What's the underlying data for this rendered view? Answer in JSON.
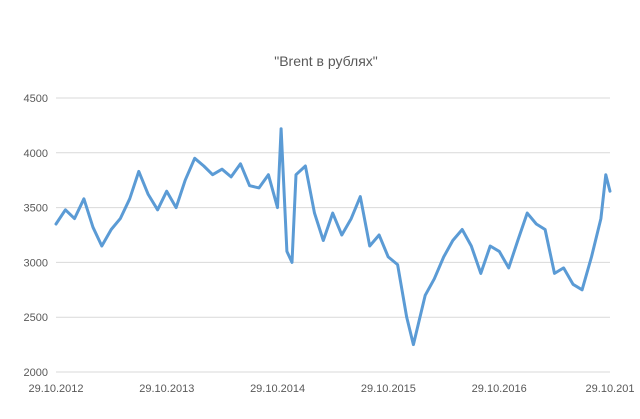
{
  "chart_data": {
    "type": "line",
    "title": "\"Brent в рублях\"",
    "xlabel": "",
    "ylabel": "",
    "x_ticks": [
      "29.10.2012",
      "29.10.2013",
      "29.10.2014",
      "29.10.2015",
      "29.10.2016",
      "29.10.201"
    ],
    "x_range": [
      "2012-10-29",
      "2017-10-29"
    ],
    "ylim": [
      2000,
      4500
    ],
    "y_ticks": [
      2000,
      2500,
      3000,
      3500,
      4000,
      4500
    ],
    "grid": "horizontal",
    "legend": "none",
    "series_color": "#5b9bd5",
    "series": [
      {
        "x": [
          "2012-10-29",
          "2012-11-29",
          "2012-12-29",
          "2013-01-29",
          "2013-02-28",
          "2013-03-29",
          "2013-04-29",
          "2013-05-29",
          "2013-06-29",
          "2013-07-29",
          "2013-08-29",
          "2013-09-29",
          "2013-10-29",
          "2013-11-29",
          "2013-12-29",
          "2014-01-29",
          "2014-02-28",
          "2014-03-29",
          "2014-04-29",
          "2014-05-29",
          "2014-06-29",
          "2014-07-29",
          "2014-08-29",
          "2014-09-29",
          "2014-10-29",
          "2014-11-10",
          "2014-11-29",
          "2014-12-16",
          "2014-12-29",
          "2015-01-29",
          "2015-02-28",
          "2015-03-29",
          "2015-04-29",
          "2015-05-29",
          "2015-06-29",
          "2015-07-29",
          "2015-08-29",
          "2015-09-29",
          "2015-10-29",
          "2015-11-29",
          "2015-12-29",
          "2016-01-20",
          "2016-02-28",
          "2016-03-29",
          "2016-04-29",
          "2016-05-29",
          "2016-06-29",
          "2016-07-29",
          "2016-08-29",
          "2016-09-29",
          "2016-10-29",
          "2016-11-29",
          "2016-12-29",
          "2017-01-29",
          "2017-02-28",
          "2017-03-29",
          "2017-04-29",
          "2017-05-29",
          "2017-06-29",
          "2017-07-29",
          "2017-08-29",
          "2017-09-29",
          "2017-10-15",
          "2017-10-29"
        ],
        "values": [
          3350,
          3480,
          3400,
          3580,
          3320,
          3150,
          3300,
          3400,
          3580,
          3830,
          3620,
          3480,
          3650,
          3500,
          3750,
          3950,
          3880,
          3800,
          3850,
          3780,
          3900,
          3700,
          3680,
          3800,
          3500,
          4220,
          3100,
          3000,
          3800,
          3880,
          3450,
          3200,
          3450,
          3250,
          3400,
          3600,
          3150,
          3250,
          3050,
          2980,
          2500,
          2250,
          2700,
          2850,
          3050,
          3200,
          3300,
          3150,
          2900,
          3150,
          3100,
          2950,
          3200,
          3450,
          3350,
          3300,
          2900,
          2950,
          2800,
          2750,
          3050,
          3400,
          3800,
          3650
        ]
      }
    ]
  }
}
